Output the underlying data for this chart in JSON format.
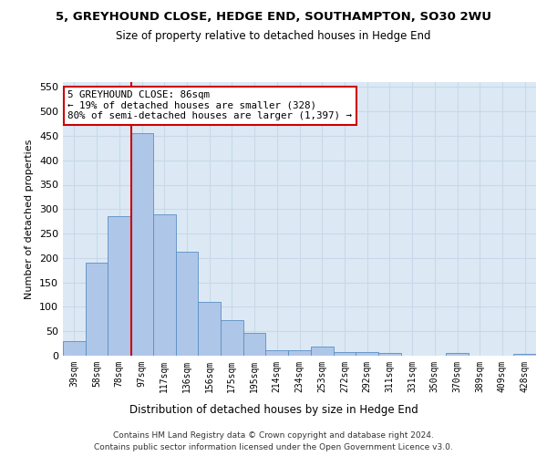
{
  "title1": "5, GREYHOUND CLOSE, HEDGE END, SOUTHAMPTON, SO30 2WU",
  "title2": "Size of property relative to detached houses in Hedge End",
  "xlabel": "Distribution of detached houses by size in Hedge End",
  "ylabel": "Number of detached properties",
  "bins": [
    "39sqm",
    "58sqm",
    "78sqm",
    "97sqm",
    "117sqm",
    "136sqm",
    "156sqm",
    "175sqm",
    "195sqm",
    "214sqm",
    "234sqm",
    "253sqm",
    "272sqm",
    "292sqm",
    "311sqm",
    "331sqm",
    "350sqm",
    "370sqm",
    "389sqm",
    "409sqm",
    "428sqm"
  ],
  "values": [
    30,
    190,
    285,
    455,
    290,
    213,
    110,
    73,
    47,
    12,
    12,
    18,
    8,
    7,
    5,
    0,
    0,
    5,
    0,
    0,
    3
  ],
  "bar_color": "#aec6e8",
  "bar_edge_color": "#5a8fc2",
  "grid_color": "#c8d8e8",
  "red_line_color": "#cc0000",
  "annotation_text": "5 GREYHOUND CLOSE: 86sqm\n← 19% of detached houses are smaller (328)\n80% of semi-detached houses are larger (1,397) →",
  "annotation_box_color": "#ffffff",
  "annotation_box_edge": "#cc0000",
  "footer1": "Contains HM Land Registry data © Crown copyright and database right 2024.",
  "footer2": "Contains public sector information licensed under the Open Government Licence v3.0.",
  "ylim": [
    0,
    560
  ],
  "yticks": [
    0,
    50,
    100,
    150,
    200,
    250,
    300,
    350,
    400,
    450,
    500,
    550
  ],
  "bg_color": "#dce9f5",
  "fig_bg": "#ffffff",
  "red_line_x": 2.55
}
